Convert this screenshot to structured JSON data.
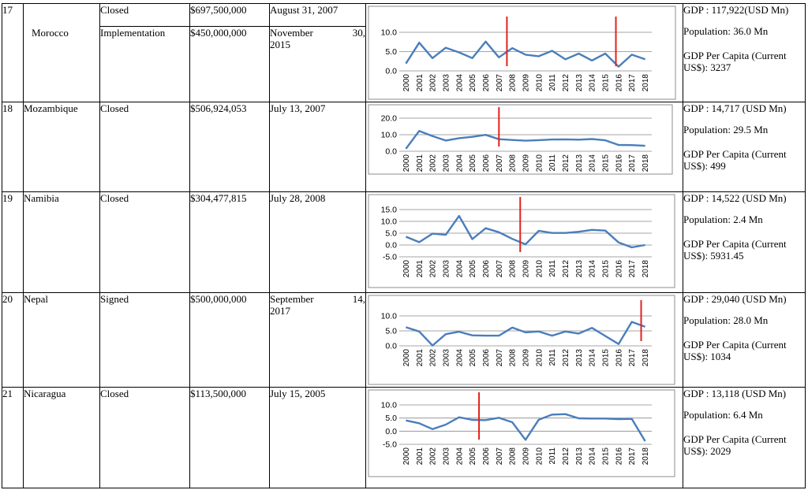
{
  "rows": [
    {
      "num": "17",
      "country": "Morocco",
      "subrows": [
        {
          "status": "Closed",
          "amount": "$697,500,000",
          "date_a": "August 31, 2007",
          "date_b": ""
        },
        {
          "status": "Implementation",
          "amount": "$450,000,000",
          "date_a": "November",
          "date_b": "30,",
          "date_c": "2015"
        }
      ],
      "gdp": "GDP : 117,922(USD Mn)",
      "population": "Population:  36.0 Mn",
      "gdp_pc_a": "GDP  Per  Capita  (Current",
      "gdp_pc_b": "US$): 3237"
    },
    {
      "num": "18",
      "country": "Mozambique",
      "status": "Closed",
      "amount": "$506,924,053",
      "date_a": "July 13, 2007",
      "gdp": "GDP :  14,717  (USD Mn)",
      "population": "Population:  29.5 Mn",
      "gdp_pc_a": "GDP  Per  Capita  (Current",
      "gdp_pc_b": "US$): 499"
    },
    {
      "num": "19",
      "country": "Namibia",
      "status": "Closed",
      "amount": "$304,477,815",
      "date_a": "July 28, 2008",
      "gdp": "GDP : 14,522  (USD Mn)",
      "population": "Population: 2.4 Mn",
      "gdp_pc_a": "GDP  Per  Capita  (Current",
      "gdp_pc_b": "US$): 5931.45"
    },
    {
      "num": "20",
      "country": "Nepal",
      "status": "Signed",
      "amount": "$500,000,000",
      "date_a": "September",
      "date_b": "14,",
      "date_c": "2017",
      "gdp": "GDP : 29,040  (USD Mn)",
      "population": "Population: 28.0 Mn",
      "gdp_pc_a": "GDP  Per  Capita  (Current",
      "gdp_pc_b": "US$): 1034"
    },
    {
      "num": "21",
      "country": "Nicaragua",
      "status": "Closed",
      "amount": "$113,500,000",
      "date_a": "July 15, 2005",
      "gdp": "GDP : 13,118  (USD Mn)",
      "population": "Population: 6.4 Mn",
      "gdp_pc_a": "GDP  Per  Capita  (Current",
      "gdp_pc_b": "US$): 2029"
    }
  ],
  "colors": {
    "line": "#4a7ebb",
    "marker": "#e0221c",
    "grid": "#888888"
  },
  "chart_data": [
    {
      "type": "line",
      "country": "Morocco",
      "x": [
        "2000",
        "2001",
        "2002",
        "2003",
        "2004",
        "2005",
        "2006",
        "2007",
        "2008",
        "2009",
        "2010",
        "2011",
        "2012",
        "2013",
        "2014",
        "2015",
        "2016",
        "2017",
        "2018"
      ],
      "values": [
        1.9,
        7.3,
        3.3,
        6.0,
        4.8,
        3.3,
        7.6,
        3.5,
        5.9,
        4.2,
        3.8,
        5.2,
        3.0,
        4.5,
        2.7,
        4.5,
        1.1,
        4.2,
        3.0
      ],
      "yticks": [
        "0.0",
        "5.0",
        "10.0"
      ],
      "ylim": [
        0,
        10
      ],
      "markers": [
        2007.6,
        2015.8
      ]
    },
    {
      "type": "line",
      "country": "Mozambique",
      "x": [
        "2000",
        "2001",
        "2002",
        "2003",
        "2004",
        "2005",
        "2006",
        "2007",
        "2008",
        "2009",
        "2010",
        "2011",
        "2012",
        "2013",
        "2014",
        "2015",
        "2016",
        "2017",
        "2018"
      ],
      "values": [
        1.5,
        12.3,
        9.2,
        6.5,
        7.9,
        8.7,
        9.9,
        7.3,
        6.8,
        6.4,
        6.7,
        7.1,
        7.2,
        7.0,
        7.4,
        6.6,
        3.8,
        3.7,
        3.3
      ],
      "yticks": [
        "0.0",
        "10.0",
        "20.0"
      ],
      "ylim": [
        0,
        20
      ],
      "markers": [
        2007.0
      ]
    },
    {
      "type": "line",
      "country": "Namibia",
      "x": [
        "2000",
        "2001",
        "2002",
        "2003",
        "2004",
        "2005",
        "2006",
        "2007",
        "2008",
        "2009",
        "2010",
        "2011",
        "2012",
        "2013",
        "2014",
        "2015",
        "2016",
        "2017",
        "2018"
      ],
      "values": [
        3.5,
        1.2,
        4.8,
        4.3,
        12.3,
        2.5,
        7.1,
        5.4,
        2.6,
        0.3,
        6.0,
        5.1,
        5.1,
        5.6,
        6.4,
        6.1,
        1.1,
        -1.0,
        0.0
      ],
      "yticks": [
        "-5.0",
        "0.0",
        "5.0",
        "10.0",
        "15.0"
      ],
      "ylim": [
        -5,
        15
      ],
      "markers": [
        2008.6
      ]
    },
    {
      "type": "line",
      "country": "Nepal",
      "x": [
        "2000",
        "2001",
        "2002",
        "2003",
        "2004",
        "2005",
        "2006",
        "2007",
        "2008",
        "2009",
        "2010",
        "2011",
        "2012",
        "2013",
        "2014",
        "2015",
        "2016",
        "2017",
        "2018"
      ],
      "values": [
        6.2,
        4.8,
        0.1,
        3.9,
        4.7,
        3.5,
        3.4,
        3.4,
        6.1,
        4.5,
        4.8,
        3.4,
        4.8,
        4.1,
        6.0,
        3.3,
        0.6,
        8.0,
        6.4
      ],
      "yticks": [
        "0.0",
        "5.0",
        "10.0"
      ],
      "ylim": [
        0,
        10
      ],
      "markers": [
        2017.7
      ]
    },
    {
      "type": "line",
      "country": "Nicaragua",
      "x": [
        "2000",
        "2001",
        "2002",
        "2003",
        "2004",
        "2005",
        "2006",
        "2007",
        "2008",
        "2009",
        "2010",
        "2011",
        "2012",
        "2013",
        "2014",
        "2015",
        "2016",
        "2017",
        "2018"
      ],
      "values": [
        4.1,
        3.0,
        0.8,
        2.5,
        5.3,
        4.3,
        4.2,
        5.1,
        3.4,
        -3.3,
        4.4,
        6.3,
        6.5,
        4.9,
        4.8,
        4.8,
        4.6,
        4.7,
        -3.8
      ],
      "yticks": [
        "-5.0",
        "0.0",
        "5.0",
        "10.0"
      ],
      "ylim": [
        -5,
        10
      ],
      "markers": [
        2005.5
      ]
    }
  ]
}
